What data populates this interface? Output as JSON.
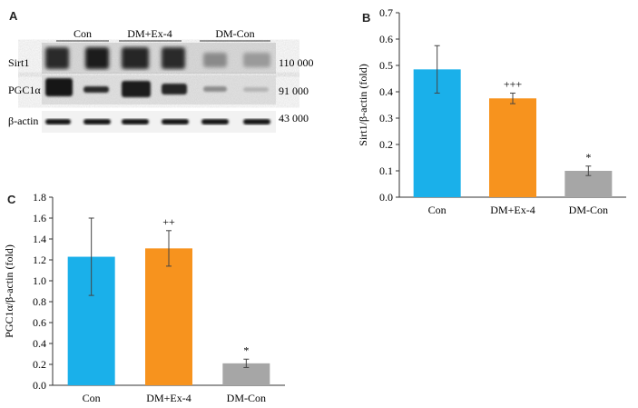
{
  "panels": {
    "a": "A",
    "b": "B",
    "c": "C"
  },
  "blot": {
    "groups": [
      "Con",
      "DM+Ex-4",
      "DM-Con"
    ],
    "bands": [
      {
        "name": "Sirt1",
        "mw": "110 000"
      },
      {
        "name": "PGC1α",
        "mw": "91 000"
      },
      {
        "name": "β-actin",
        "mw": "43 000"
      }
    ]
  },
  "colors": {
    "Con": "#1ab0ea",
    "DM+Ex-4": "#f7931e",
    "DM-Con": "#a6a6a6"
  },
  "chart_data": [
    {
      "panel": "B",
      "type": "bar",
      "categories": [
        "Con",
        "DM+Ex-4",
        "DM-Con"
      ],
      "values": [
        0.485,
        0.375,
        0.1
      ],
      "errors": [
        0.09,
        0.02,
        0.018
      ],
      "annotations": [
        "",
        "+++",
        "*"
      ],
      "ylabel": "Sirt1/β-actin (fold)",
      "ylim": [
        0,
        0.7
      ],
      "yticks": [
        "0.0",
        "0.1",
        "0.2",
        "0.3",
        "0.4",
        "0.5",
        "0.6",
        "0.7"
      ],
      "grid": false
    },
    {
      "panel": "C",
      "type": "bar",
      "categories": [
        "Con",
        "DM+Ex-4",
        "DM-Con"
      ],
      "values": [
        1.23,
        1.31,
        0.21
      ],
      "errors": [
        0.37,
        0.17,
        0.04
      ],
      "annotations": [
        "",
        "++",
        "*"
      ],
      "ylabel": "PGC1α/β-actin (fold)",
      "ylim": [
        0,
        1.8
      ],
      "yticks": [
        "0.0",
        "0.2",
        "0.4",
        "0.6",
        "0.8",
        "1.0",
        "1.2",
        "1.4",
        "1.6",
        "1.8"
      ],
      "grid": false
    }
  ]
}
